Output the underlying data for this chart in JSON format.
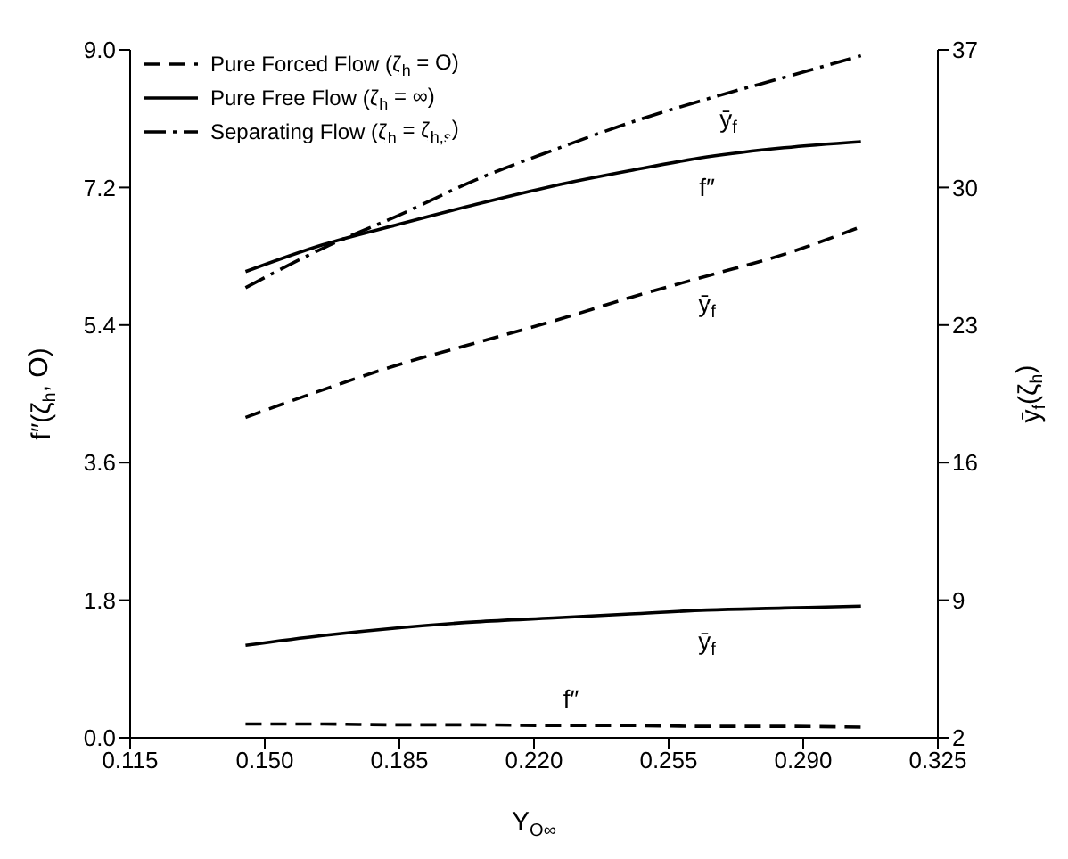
{
  "chart_data": {
    "type": "line",
    "xlabel": "Y$_{O∞}$",
    "ylabel": "f″(ζ$_{h}$, O)",
    "y2label": "ȳ$_{f}$(ζ$_{h}$)",
    "x": [
      0.145,
      0.165,
      0.185,
      0.205,
      0.225,
      0.245,
      0.265,
      0.285,
      0.305
    ],
    "series": [
      {
        "name": "f″",
        "color": "#000000",
        "line_style": "dashed",
        "values": [
          0.18,
          0.18,
          0.17,
          0.17,
          0.16,
          0.16,
          0.15,
          0.15,
          0.14
        ]
      },
      {
        "name": "ȳ$_{f}$",
        "color": "#000000",
        "line_style": "dashed",
        "axis": "y2",
        "values": [
          18.3,
          19.7,
          21.0,
          22.1,
          23.2,
          24.4,
          25.5,
          26.6,
          28.0
        ]
      },
      {
        "name": "f″",
        "color": "#000000",
        "line_style": "solid",
        "values": [
          6.1,
          6.45,
          6.72,
          6.98,
          7.22,
          7.42,
          7.6,
          7.72,
          7.8
        ]
      },
      {
        "name": "ȳ$_{f}$",
        "color": "#000000",
        "line_style": "solid",
        "axis": "y2",
        "values": [
          6.7,
          7.2,
          7.6,
          7.9,
          8.1,
          8.3,
          8.5,
          8.6,
          8.7
        ]
      },
      {
        "name": "ȳ$_{f}$",
        "color": "#000000",
        "line_style": "dashdot",
        "axis": "y2",
        "values": [
          24.9,
          26.9,
          28.6,
          30.4,
          31.9,
          33.3,
          34.5,
          35.6,
          36.7
        ]
      }
    ],
    "xlim": [
      0.115,
      0.325
    ],
    "xticks": [
      {
        "value": 0.115,
        "label": "0.115"
      },
      {
        "value": 0.15,
        "label": "0.150"
      },
      {
        "value": 0.185,
        "label": "0.185"
      },
      {
        "value": 0.22,
        "label": "0.220"
      },
      {
        "value": 0.255,
        "label": "0.255"
      },
      {
        "value": 0.29,
        "label": "0.290"
      },
      {
        "value": 0.325,
        "label": "0.325"
      }
    ],
    "ylim": [
      0,
      9
    ],
    "yticks": [
      {
        "value": 0,
        "label": "0.0"
      },
      1.8,
      3.6,
      5.4,
      7.2,
      {
        "value": 9,
        "label": "9.0"
      }
    ],
    "y2lim": [
      2,
      37
    ],
    "y2ticks": [
      2,
      9,
      16,
      23,
      30,
      37
    ],
    "annotations": [
      "Pure Forced Flow (ζ$_{h}$ = O)",
      "Pure Free Flow (ζ$_{h}$ = ∞)",
      "Separating Flow (ζ$_{h}$ = ζ$_{h,s}$)"
    ],
    "grid": false
  }
}
